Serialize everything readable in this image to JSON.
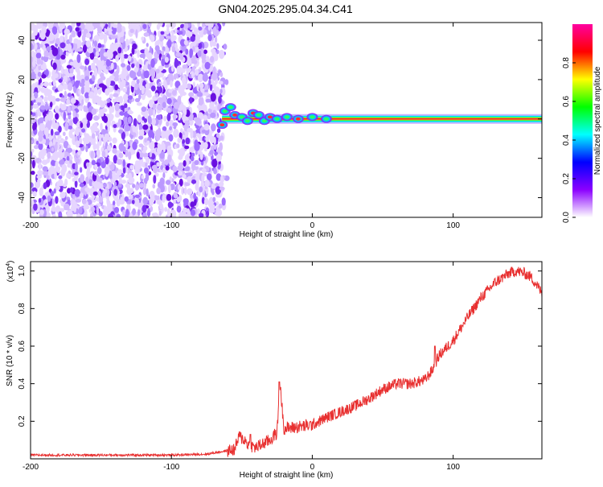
{
  "page": {
    "title": "GN04.2025.295.04.34.C41"
  },
  "chart_data": [
    {
      "type": "heatmap",
      "name": "spectrogram",
      "xlabel": "Height of straight line (km)",
      "ylabel": "Frequency (Hz)",
      "xlim": [
        -200,
        163
      ],
      "ylim": [
        -50,
        49
      ],
      "xticks": [
        "-200",
        "-100",
        "0",
        "100"
      ],
      "xtick_values": [
        -200,
        -100,
        0,
        100
      ],
      "yticks": [
        "40",
        "20",
        "0",
        "-20",
        "-40"
      ],
      "ytick_values": [
        40,
        20,
        0,
        -20,
        -40
      ],
      "noise_region_x": [
        -200,
        -64
      ],
      "signal_line": {
        "frequency_hz": 0,
        "x_start": -64,
        "x_end": 163,
        "amplitude": 1.0
      },
      "signal_wobble": [
        {
          "x": -64,
          "y": -3
        },
        {
          "x": -62,
          "y": 4
        },
        {
          "x": -58,
          "y": 6
        },
        {
          "x": -55,
          "y": 2
        },
        {
          "x": -50,
          "y": 1
        },
        {
          "x": -46,
          "y": -1
        },
        {
          "x": -42,
          "y": 3
        },
        {
          "x": -38,
          "y": 2
        },
        {
          "x": -34,
          "y": -1
        },
        {
          "x": -30,
          "y": 1
        },
        {
          "x": -25,
          "y": 0
        },
        {
          "x": -18,
          "y": 1
        },
        {
          "x": -10,
          "y": 0
        },
        {
          "x": 0,
          "y": 1
        },
        {
          "x": 10,
          "y": 0
        }
      ],
      "colorbar": {
        "label": "Normalized spectral amplitude",
        "ticks": [
          "0.0",
          "0.2",
          "0.4",
          "0.6",
          "0.8"
        ],
        "tick_values": [
          0.0,
          0.2,
          0.4,
          0.6,
          0.8
        ],
        "range": [
          0,
          1
        ],
        "colors": [
          "#ffffff",
          "#8b00ff",
          "#0000ff",
          "#00ffff",
          "#00ff00",
          "#ffff00",
          "#ff0000",
          "#ff00a0"
        ]
      }
    },
    {
      "type": "line",
      "name": "snr",
      "xlabel": "Height of straight line (km)",
      "ylabel": "SNR (10 * v/v)",
      "y_multiplier": "(x10",
      "y_multiplier_exp": "4",
      "y_multiplier_close": ")",
      "xlim": [
        -200,
        163
      ],
      "ylim": [
        0,
        1.05
      ],
      "xticks": [
        "-200",
        "-100",
        "0",
        "100"
      ],
      "xtick_values": [
        -200,
        -100,
        0,
        100
      ],
      "yticks": [
        "1.0",
        "0.8",
        "0.6",
        "0.4",
        "0.2"
      ],
      "ytick_values": [
        1.0,
        0.8,
        0.6,
        0.4,
        0.2
      ],
      "color": "#e83030",
      "x": [
        -200,
        -150,
        -100,
        -75,
        -55,
        -52,
        -48,
        -45,
        -40,
        -30,
        -25,
        -23,
        -20,
        -10,
        0,
        10,
        20,
        30,
        40,
        50,
        60,
        70,
        80,
        85,
        90,
        100,
        110,
        120,
        130,
        140,
        145,
        150,
        155,
        160,
        163
      ],
      "values": [
        0.02,
        0.02,
        0.02,
        0.025,
        0.05,
        0.12,
        0.1,
        0.07,
        0.06,
        0.1,
        0.14,
        0.4,
        0.16,
        0.17,
        0.18,
        0.22,
        0.25,
        0.28,
        0.32,
        0.37,
        0.4,
        0.4,
        0.42,
        0.47,
        0.55,
        0.63,
        0.75,
        0.86,
        0.94,
        0.99,
        1.0,
        0.99,
        0.97,
        0.92,
        0.88
      ],
      "spikes": [
        {
          "x": -23.5,
          "y": 0.41
        },
        {
          "x": -44,
          "y": 0.13
        },
        {
          "x": 87,
          "y": 0.6
        }
      ]
    }
  ]
}
